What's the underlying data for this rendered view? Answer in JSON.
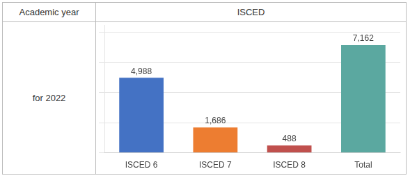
{
  "chart_data": {
    "type": "bar",
    "categories": [
      "ISCED 6",
      "ISCED 7",
      "ISCED 8",
      "Total"
    ],
    "values": [
      4988,
      1686,
      488,
      7162
    ],
    "value_labels": [
      "4,988",
      "1,686",
      "488",
      "7,162"
    ],
    "colors": [
      "#4472C4",
      "#ED7D31",
      "#C0504D",
      "#5BA8A0"
    ],
    "ylim": [
      0,
      8500
    ],
    "yticks": [
      0,
      2000,
      4000,
      6000,
      8000
    ],
    "grid": true,
    "data_labels": true,
    "tick_labels": "x",
    "annotations": [
      "Academic year",
      "ISCED",
      "for 2022"
    ]
  }
}
